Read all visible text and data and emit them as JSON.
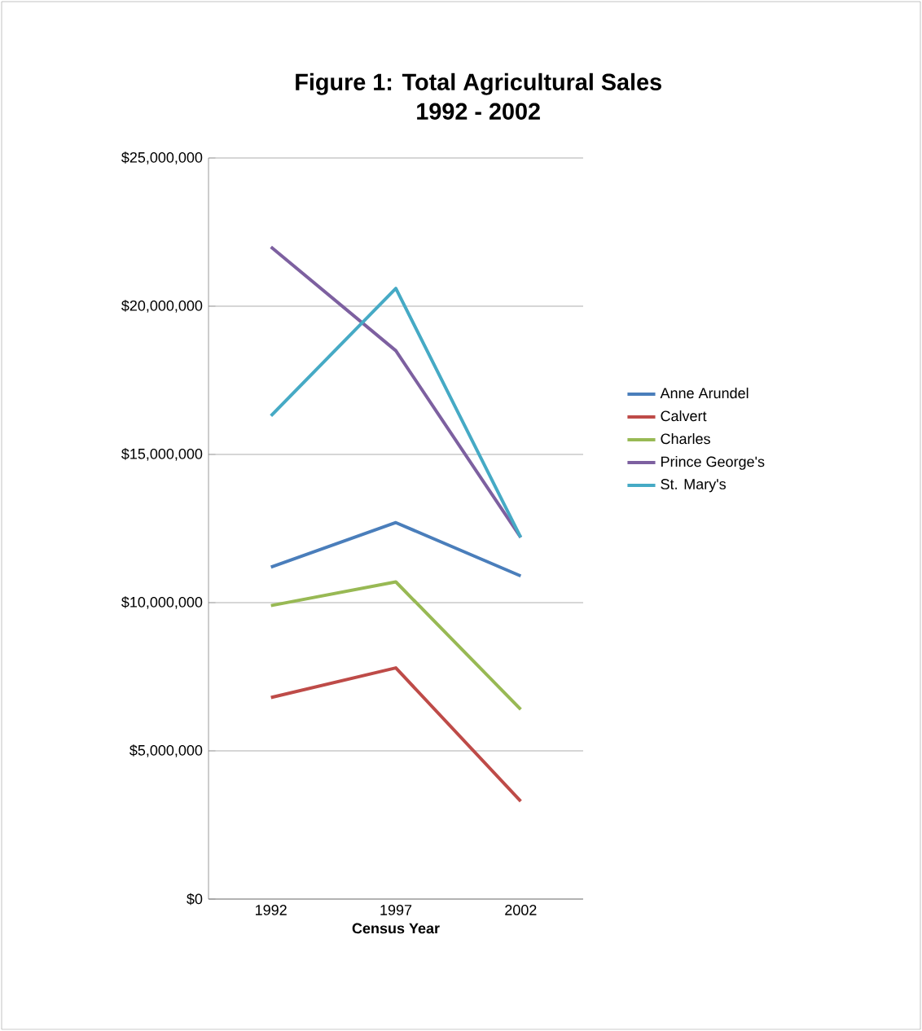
{
  "chart_data": {
    "type": "line",
    "title": "Figure 1: Total Agricultural Sales\n1992 - 2002",
    "xlabel": "Census Year",
    "categories": [
      "1992",
      "1997",
      "2002"
    ],
    "series": [
      {
        "name": "Anne Arundel",
        "color": "#4a7ebb",
        "values": [
          11200000,
          12700000,
          10900000
        ]
      },
      {
        "name": "Calvert",
        "color": "#be4b48",
        "values": [
          6800000,
          7800000,
          3300000
        ]
      },
      {
        "name": "Charles",
        "color": "#98b954",
        "values": [
          9900000,
          10700000,
          6400000
        ]
      },
      {
        "name": "Prince George's",
        "color": "#7d60a0",
        "values": [
          22000000,
          18500000,
          12200000
        ]
      },
      {
        "name": "St. Mary's",
        "color": "#46aac5",
        "values": [
          16300000,
          20600000,
          12200000
        ]
      }
    ],
    "ylim": [
      0,
      25000000
    ],
    "yticks": [
      {
        "value": 0,
        "label": "$0"
      },
      {
        "value": 5000000,
        "label": "$5,000,000"
      },
      {
        "value": 10000000,
        "label": "$10,000,000"
      },
      {
        "value": 15000000,
        "label": "$15,000,000"
      },
      {
        "value": 20000000,
        "label": "$20,000,000"
      },
      {
        "value": 25000000,
        "label": "$25,000,000"
      }
    ],
    "grid": "y",
    "legend": "right",
    "marker": "none",
    "line_style": "solid"
  }
}
